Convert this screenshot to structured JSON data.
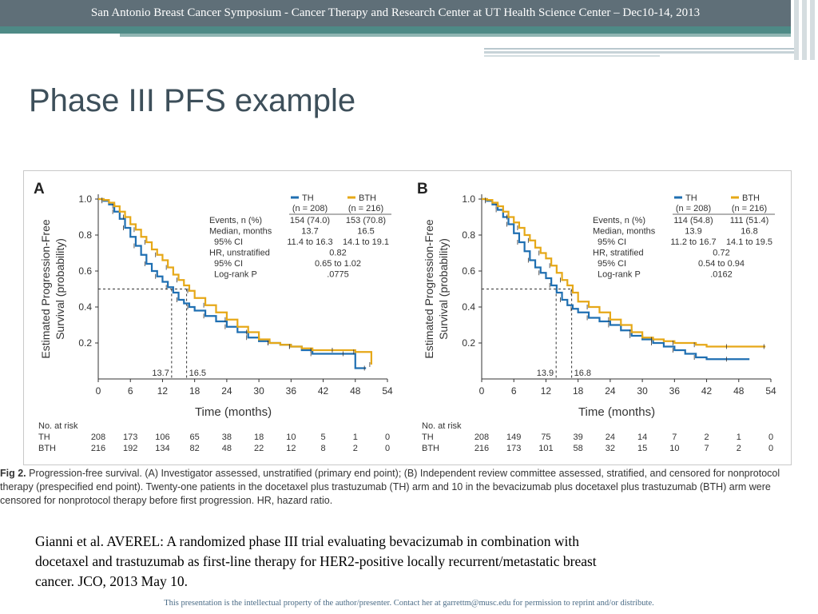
{
  "header": {
    "banner": "San Antonio Breast Cancer Symposium - Cancer Therapy and Research Center at UT Health Science Center – Dec10-14, 2013"
  },
  "slide": {
    "title": "Phase III PFS example"
  },
  "colors": {
    "th": "#1f6fb2",
    "bth": "#e6a817",
    "banner": "#5f6f78",
    "accent": "#4e8a86"
  },
  "chart_data": [
    {
      "type": "line",
      "panel": "A",
      "ylabel": "Estimated Progression-Free\nSurvival (probability)",
      "xlabel": "Time (months)",
      "xlim": [
        0,
        54
      ],
      "ylim": [
        0,
        1.0
      ],
      "xticks": [
        "0",
        "6",
        "12",
        "18",
        "24",
        "30",
        "36",
        "42",
        "48",
        "54"
      ],
      "yticks": [
        "0.2",
        "0.4",
        "0.6",
        "0.8",
        "1.0"
      ],
      "medians": {
        "th": 13.7,
        "bth": 16.5,
        "th_label": "13.7",
        "bth_label": "16.5"
      },
      "legend": {
        "th_name": "TH",
        "th_n": "(n = 208)",
        "bth_name": "BTH",
        "bth_n": "(n = 216)"
      },
      "stats": [
        [
          "Events, n (%)",
          "154 (74.0)",
          "153 (70.8)"
        ],
        [
          "Median, months",
          "13.7",
          "16.5"
        ],
        [
          "95% CI",
          "11.4 to 16.3",
          "14.1 to 19.1"
        ],
        [
          "HR, unstratified",
          "0.82",
          ""
        ],
        [
          "95% CI",
          "0.65 to 1.02",
          ""
        ],
        [
          "Log-rank P",
          ".0775",
          ""
        ]
      ],
      "series": [
        {
          "name": "TH",
          "key": "th",
          "points": [
            [
              0,
              1.0
            ],
            [
              1,
              0.99
            ],
            [
              2,
              0.97
            ],
            [
              3,
              0.93
            ],
            [
              4,
              0.89
            ],
            [
              5,
              0.84
            ],
            [
              6,
              0.79
            ],
            [
              7,
              0.74
            ],
            [
              8,
              0.69
            ],
            [
              9,
              0.64
            ],
            [
              10,
              0.6
            ],
            [
              11,
              0.57
            ],
            [
              12,
              0.54
            ],
            [
              13,
              0.51
            ],
            [
              14,
              0.48
            ],
            [
              15,
              0.44
            ],
            [
              16,
              0.42
            ],
            [
              17,
              0.4
            ],
            [
              18,
              0.38
            ],
            [
              20,
              0.35
            ],
            [
              22,
              0.32
            ],
            [
              24,
              0.29
            ],
            [
              26,
              0.26
            ],
            [
              28,
              0.23
            ],
            [
              30,
              0.21
            ],
            [
              32,
              0.2
            ],
            [
              34,
              0.19
            ],
            [
              36,
              0.18
            ],
            [
              38,
              0.16
            ],
            [
              40,
              0.14
            ],
            [
              42,
              0.14
            ],
            [
              46,
              0.14
            ],
            [
              48,
              0.06
            ],
            [
              50,
              0.06
            ]
          ]
        },
        {
          "name": "BTH",
          "key": "bth",
          "points": [
            [
              0,
              1.0
            ],
            [
              1,
              0.995
            ],
            [
              2,
              0.98
            ],
            [
              3,
              0.96
            ],
            [
              4,
              0.93
            ],
            [
              5,
              0.9
            ],
            [
              6,
              0.86
            ],
            [
              7,
              0.83
            ],
            [
              8,
              0.79
            ],
            [
              9,
              0.76
            ],
            [
              10,
              0.72
            ],
            [
              11,
              0.69
            ],
            [
              12,
              0.66
            ],
            [
              13,
              0.62
            ],
            [
              14,
              0.58
            ],
            [
              15,
              0.55
            ],
            [
              16,
              0.52
            ],
            [
              17,
              0.49
            ],
            [
              18,
              0.45
            ],
            [
              20,
              0.41
            ],
            [
              22,
              0.37
            ],
            [
              24,
              0.33
            ],
            [
              26,
              0.29
            ],
            [
              28,
              0.26
            ],
            [
              30,
              0.22
            ],
            [
              32,
              0.2
            ],
            [
              34,
              0.19
            ],
            [
              36,
              0.18
            ],
            [
              38,
              0.17
            ],
            [
              40,
              0.16
            ],
            [
              42,
              0.16
            ],
            [
              44,
              0.16
            ],
            [
              46,
              0.16
            ],
            [
              48,
              0.15
            ],
            [
              50,
              0.15
            ],
            [
              51,
              0.08
            ]
          ]
        }
      ],
      "at_risk": {
        "title": "No. at risk",
        "th": {
          "label": "TH",
          "values": [
            "208",
            "173",
            "106",
            "65",
            "38",
            "18",
            "10",
            "5",
            "1",
            "0"
          ]
        },
        "bth": {
          "label": "BTH",
          "values": [
            "216",
            "192",
            "134",
            "82",
            "48",
            "22",
            "12",
            "8",
            "2",
            "0"
          ]
        }
      }
    },
    {
      "type": "line",
      "panel": "B",
      "ylabel": "Estimated Progression-Free\nSurvival (probability)",
      "xlabel": "Time (months)",
      "xlim": [
        0,
        54
      ],
      "ylim": [
        0,
        1.0
      ],
      "xticks": [
        "0",
        "6",
        "12",
        "18",
        "24",
        "30",
        "36",
        "42",
        "48",
        "54"
      ],
      "yticks": [
        "0.2",
        "0.4",
        "0.6",
        "0.8",
        "1.0"
      ],
      "medians": {
        "th": 13.9,
        "bth": 16.8,
        "th_label": "13.9",
        "bth_label": "16.8"
      },
      "legend": {
        "th_name": "TH",
        "th_n": "(n = 208)",
        "bth_name": "BTH",
        "bth_n": "(n = 216)"
      },
      "stats": [
        [
          "Events, n (%)",
          "114 (54.8)",
          "111 (51.4)"
        ],
        [
          "Median, months",
          "13.9",
          "16.8"
        ],
        [
          "95% CI",
          "11.2 to 16.7",
          "14.1 to 19.5"
        ],
        [
          "HR, stratified",
          "0.72",
          ""
        ],
        [
          "95% CI",
          "0.54 to 0.94",
          ""
        ],
        [
          "Log-rank P",
          ".0162",
          ""
        ]
      ],
      "series": [
        {
          "name": "TH",
          "key": "th",
          "points": [
            [
              0,
              1.0
            ],
            [
              1,
              0.99
            ],
            [
              2,
              0.97
            ],
            [
              3,
              0.94
            ],
            [
              4,
              0.9
            ],
            [
              5,
              0.86
            ],
            [
              6,
              0.81
            ],
            [
              7,
              0.76
            ],
            [
              8,
              0.71
            ],
            [
              9,
              0.66
            ],
            [
              10,
              0.62
            ],
            [
              11,
              0.59
            ],
            [
              12,
              0.56
            ],
            [
              13,
              0.52
            ],
            [
              14,
              0.48
            ],
            [
              15,
              0.44
            ],
            [
              16,
              0.41
            ],
            [
              17,
              0.39
            ],
            [
              18,
              0.37
            ],
            [
              20,
              0.34
            ],
            [
              22,
              0.32
            ],
            [
              24,
              0.3
            ],
            [
              26,
              0.27
            ],
            [
              28,
              0.24
            ],
            [
              30,
              0.22
            ],
            [
              32,
              0.2
            ],
            [
              34,
              0.18
            ],
            [
              36,
              0.16
            ],
            [
              38,
              0.14
            ],
            [
              40,
              0.12
            ],
            [
              42,
              0.11
            ],
            [
              46,
              0.11
            ],
            [
              50,
              0.11
            ]
          ]
        },
        {
          "name": "BTH",
          "key": "bth",
          "points": [
            [
              0,
              1.0
            ],
            [
              1,
              0.995
            ],
            [
              2,
              0.98
            ],
            [
              3,
              0.96
            ],
            [
              4,
              0.93
            ],
            [
              5,
              0.9
            ],
            [
              6,
              0.87
            ],
            [
              7,
              0.84
            ],
            [
              8,
              0.8
            ],
            [
              9,
              0.77
            ],
            [
              10,
              0.73
            ],
            [
              11,
              0.7
            ],
            [
              12,
              0.67
            ],
            [
              13,
              0.63
            ],
            [
              14,
              0.59
            ],
            [
              15,
              0.55
            ],
            [
              16,
              0.52
            ],
            [
              17,
              0.48
            ],
            [
              18,
              0.43
            ],
            [
              20,
              0.4
            ],
            [
              22,
              0.37
            ],
            [
              24,
              0.33
            ],
            [
              26,
              0.3
            ],
            [
              28,
              0.26
            ],
            [
              30,
              0.23
            ],
            [
              32,
              0.22
            ],
            [
              34,
              0.21
            ],
            [
              36,
              0.2
            ],
            [
              38,
              0.2
            ],
            [
              40,
              0.19
            ],
            [
              42,
              0.18
            ],
            [
              46,
              0.18
            ],
            [
              50,
              0.18
            ],
            [
              53,
              0.18
            ]
          ]
        }
      ],
      "at_risk": {
        "title": "No. at risk",
        "th": {
          "label": "TH",
          "values": [
            "208",
            "149",
            "75",
            "39",
            "24",
            "14",
            "7",
            "2",
            "1",
            "0"
          ]
        },
        "bth": {
          "label": "BTH",
          "values": [
            "216",
            "173",
            "101",
            "58",
            "32",
            "15",
            "10",
            "7",
            "2",
            "0"
          ]
        }
      }
    }
  ],
  "caption": {
    "prefix": "Fig 2.",
    "text": " Progression-free survival. (A) Investigator assessed, unstratified (primary end point); (B) Independent review committee assessed, stratified, and censored for nonprotocol therapy (prespecified end point). Twenty-one patients in the docetaxel plus trastuzumab (TH) arm and 10 in the bevacizumab plus docetaxel plus trastuzumab (BTH) arm were censored for nonprotocol therapy before first progression. HR, hazard ratio."
  },
  "citation": "Gianni et al. AVEREL: A randomized phase III trial evaluating bevacizumab in combination with docetaxel and trastuzumab as first-line therapy for HER2-positive locally recurrent/metastatic breast cancer.  JCO, 2013 May 10.",
  "footer": "This presentation is the intellectual property of the author/presenter.  Contact her at garrettm@musc.edu for permission to reprint and/or distribute."
}
